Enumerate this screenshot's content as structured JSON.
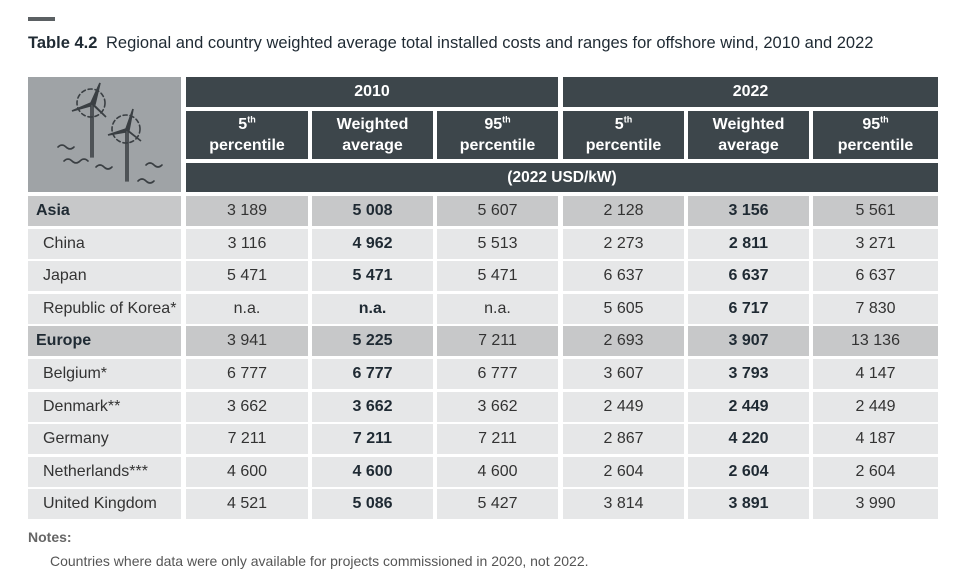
{
  "table": {
    "number": "Table 4.2",
    "title": "Regional and country weighted average total installed costs and ranges for offshore wind, 2010 and 2022",
    "years": [
      "2010",
      "2022"
    ],
    "subheaders": [
      {
        "line1": "5",
        "sup": "th",
        "line2": "percentile"
      },
      {
        "line1": "Weighted",
        "sup": "",
        "line2": "average"
      },
      {
        "line1": "95",
        "sup": "th",
        "line2": "percentile"
      },
      {
        "line1": "5",
        "sup": "th",
        "line2": "percentile"
      },
      {
        "line1": "Weighted",
        "sup": "",
        "line2": "average"
      },
      {
        "line1": "95",
        "sup": "th",
        "line2": "percentile"
      }
    ],
    "unit": "(2022 USD/kW)",
    "rows": [
      {
        "type": "region",
        "label": "Asia",
        "values": [
          "3 189",
          "5 008",
          "5 607",
          "2 128",
          "3 156",
          "5 561"
        ]
      },
      {
        "type": "country",
        "label": "China",
        "values": [
          "3 116",
          "4 962",
          "5 513",
          "2 273",
          "2 811",
          "3 271"
        ]
      },
      {
        "type": "country",
        "label": "Japan",
        "values": [
          "5 471",
          "5 471",
          "5 471",
          "6 637",
          "6 637",
          "6 637"
        ]
      },
      {
        "type": "country",
        "label": "Republic of Korea*",
        "values": [
          "n.a.",
          "n.a.",
          "n.a.",
          "5 605",
          "6 717",
          "7 830"
        ]
      },
      {
        "type": "region",
        "label": "Europe",
        "values": [
          "3 941",
          "5 225",
          "7 211",
          "2 693",
          "3 907",
          "13 136"
        ]
      },
      {
        "type": "country",
        "label": "Belgium*",
        "values": [
          "6 777",
          "6 777",
          "6 777",
          "3 607",
          "3 793",
          "4 147"
        ]
      },
      {
        "type": "country",
        "label": "Denmark**",
        "values": [
          "3 662",
          "3 662",
          "3 662",
          "2 449",
          "2 449",
          "2 449"
        ]
      },
      {
        "type": "country",
        "label": "Germany",
        "values": [
          "7 211",
          "7 211",
          "7 211",
          "2 867",
          "4 220",
          "4 187"
        ]
      },
      {
        "type": "country",
        "label": "Netherlands***",
        "values": [
          "4 600",
          "4 600",
          "4 600",
          "2 604",
          "2 604",
          "2 604"
        ]
      },
      {
        "type": "country",
        "label": "United Kingdom",
        "values": [
          "4 521",
          "5 086",
          "5 427",
          "3 814",
          "3 891",
          "3 990"
        ]
      }
    ]
  },
  "notes": {
    "title": "Notes:",
    "text": "Countries where data were only available for projects commissioned in 2020, not 2022."
  },
  "icons": {
    "header_icon": "offshore-wind-turbines-icon"
  },
  "colors": {
    "header_dark": "#3d464b",
    "icon_bg": "#9fa3a6",
    "region_row": "#c7c8c9",
    "country_row": "#e6e7e8"
  }
}
